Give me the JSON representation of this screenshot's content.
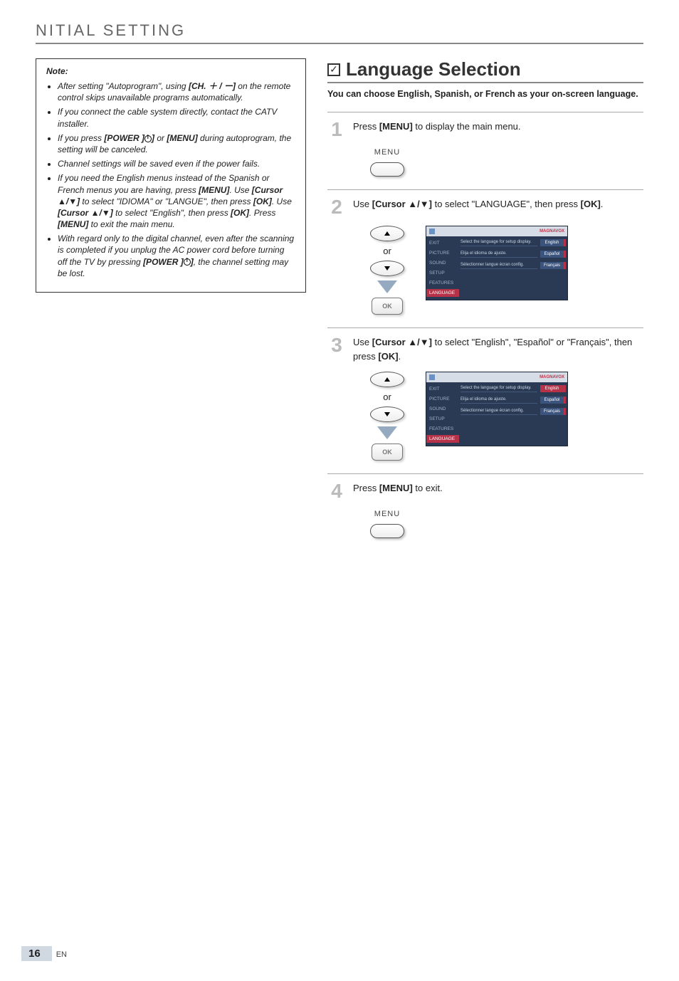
{
  "header": {
    "title": "NITIAL   SETTING"
  },
  "note": {
    "title": "Note:",
    "items": [
      {
        "pre": "After setting \"Autoprogram\", using ",
        "b1": "[CH. ＋ / ー]",
        "post": " on the remote control skips unavailable programs automatically."
      },
      {
        "pre": "If you connect the cable system directly, contact the CATV installer.",
        "b1": "",
        "post": ""
      },
      {
        "pre": "If you press ",
        "b1": "[POWER ]",
        "mid1": " or ",
        "b2": "[MENU]",
        "post": " during autoprogram, the setting will be canceled.",
        "power": true
      },
      {
        "pre": "Channel settings will be saved even if the power fails.",
        "b1": "",
        "post": ""
      },
      {
        "pre": "If you need the English menus instead of the Spanish or French menus you are having, press ",
        "b1": "[MENU]",
        "mid1": ". Use ",
        "b2": "[Cursor ▲/▼]",
        "mid2": " to select \"IDIOMA\" or \"LANGUE\", then press ",
        "b3": "[OK]",
        "mid3": ". Use ",
        "b4": "[Cursor ▲/▼]",
        "mid4": " to select \"English\", then press ",
        "b5": "[OK]",
        "mid5": ". Press ",
        "b6": "[MENU]",
        "post": " to exit the main menu."
      },
      {
        "pre": "With regard only to the digital channel, even after the scanning is completed if you unplug the AC power cord before turning off the TV by pressing ",
        "b1": "[POWER ]",
        "post": ", the channel setting may be lost.",
        "power": true
      }
    ]
  },
  "section": {
    "title": "Language Selection",
    "subtitle": "You can choose English, Spanish, or French as your on-screen language."
  },
  "steps": {
    "s1": {
      "num": "1",
      "t1": "Press ",
      "b1": "[MENU]",
      "t2": " to display the main menu.",
      "menu_label": "MENU"
    },
    "s2": {
      "num": "2",
      "t1": "Use ",
      "b1": "[Cursor ▲/▼]",
      "t2": " to select \"LANGUAGE\", then press ",
      "b2": "[OK]",
      "t3": ".",
      "or": "or"
    },
    "s3": {
      "num": "3",
      "t1": "Use ",
      "b1": "[Cursor ▲/▼]",
      "t2": " to select \"English\", \"Español\" or \"Français\", then press ",
      "b2": "[OK]",
      "t3": ".",
      "or": "or"
    },
    "s4": {
      "num": "4",
      "t1": "Press ",
      "b1": "[MENU]",
      "t2": " to exit.",
      "menu_label": "MENU"
    }
  },
  "tvmenu": {
    "brand": "MAGNAVOX",
    "side": [
      "EXIT",
      "PICTURE",
      "SOUND",
      "SETUP",
      "FEATURES",
      "LANGUAGE"
    ],
    "rows": [
      {
        "desc": "Select the language for setup display.",
        "opt": "English"
      },
      {
        "desc": "Elija el idioma de ajuste.",
        "opt": "Español"
      },
      {
        "desc": "Sélectionner langue écran config.",
        "opt": "Français"
      }
    ]
  },
  "ok_label": "OK",
  "footer": {
    "page": "16",
    "lang": "EN"
  }
}
